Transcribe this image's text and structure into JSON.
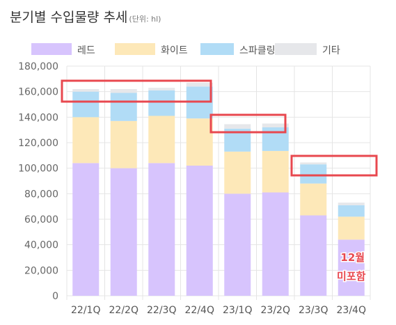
{
  "title": "분기별 수입물량 추세",
  "unit_note": "(단위: hl)",
  "chart_data": {
    "type": "bar",
    "stacked": true,
    "categories": [
      "22/1Q",
      "22/2Q",
      "22/3Q",
      "22/4Q",
      "23/1Q",
      "23/2Q",
      "23/3Q",
      "23/4Q"
    ],
    "series": [
      {
        "name": "레드",
        "color": "#d7c4fd",
        "values": [
          104000,
          100000,
          104000,
          102000,
          80000,
          81000,
          63000,
          44000
        ]
      },
      {
        "name": "화이트",
        "color": "#fde8b8",
        "values": [
          36000,
          37000,
          37000,
          37000,
          33000,
          32500,
          25000,
          18000
        ]
      },
      {
        "name": "스파클링",
        "color": "#b1dcf6",
        "values": [
          20000,
          22000,
          20000,
          25000,
          18000,
          18500,
          15000,
          9000
        ]
      },
      {
        "name": "기타",
        "color": "#e6e7ea",
        "values": [
          2000,
          3000,
          2000,
          3000,
          3500,
          3000,
          1500,
          2000
        ]
      }
    ],
    "ylim": [
      0,
      180000
    ],
    "yticks": [
      "0",
      "20,000",
      "40,000",
      "60,000",
      "80,000",
      "100,000",
      "120,000",
      "140,000",
      "160,000",
      "180,000"
    ],
    "legend_position": "top",
    "grid": true,
    "annotation": {
      "line1": "12월",
      "line2": "미포함",
      "color": "#e8484f"
    },
    "highlight_color": "#e8484f"
  }
}
